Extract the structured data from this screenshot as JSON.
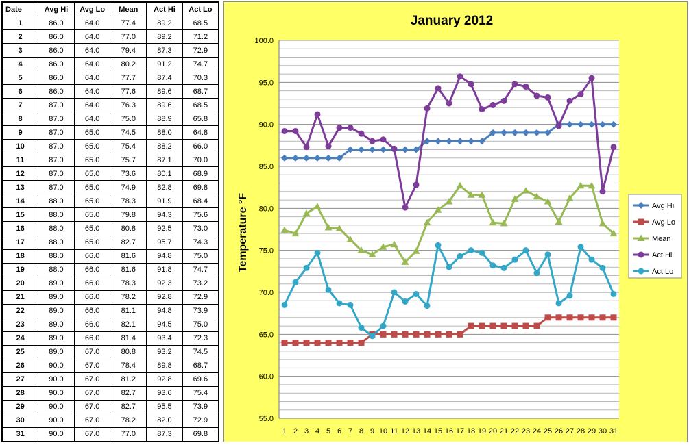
{
  "table": {
    "headers": [
      "Date",
      "Avg Hi",
      "Avg Lo",
      "Mean",
      "Act Hi",
      "Act Lo"
    ],
    "rows": [
      [
        "1",
        "86.0",
        "64.0",
        "77.4",
        "89.2",
        "68.5"
      ],
      [
        "2",
        "86.0",
        "64.0",
        "77.0",
        "89.2",
        "71.2"
      ],
      [
        "3",
        "86.0",
        "64.0",
        "79.4",
        "87.3",
        "72.9"
      ],
      [
        "4",
        "86.0",
        "64.0",
        "80.2",
        "91.2",
        "74.7"
      ],
      [
        "5",
        "86.0",
        "64.0",
        "77.7",
        "87.4",
        "70.3"
      ],
      [
        "6",
        "86.0",
        "64.0",
        "77.6",
        "89.6",
        "68.7"
      ],
      [
        "7",
        "87.0",
        "64.0",
        "76.3",
        "89.6",
        "68.5"
      ],
      [
        "8",
        "87.0",
        "64.0",
        "75.0",
        "88.9",
        "65.8"
      ],
      [
        "9",
        "87.0",
        "65.0",
        "74.5",
        "88.0",
        "64.8"
      ],
      [
        "10",
        "87.0",
        "65.0",
        "75.4",
        "88.2",
        "66.0"
      ],
      [
        "11",
        "87.0",
        "65.0",
        "75.7",
        "87.1",
        "70.0"
      ],
      [
        "12",
        "87.0",
        "65.0",
        "73.6",
        "80.1",
        "68.9"
      ],
      [
        "13",
        "87.0",
        "65.0",
        "74.9",
        "82.8",
        "69.8"
      ],
      [
        "14",
        "88.0",
        "65.0",
        "78.3",
        "91.9",
        "68.4"
      ],
      [
        "15",
        "88.0",
        "65.0",
        "79.8",
        "94.3",
        "75.6"
      ],
      [
        "16",
        "88.0",
        "65.0",
        "80.8",
        "92.5",
        "73.0"
      ],
      [
        "17",
        "88.0",
        "65.0",
        "82.7",
        "95.7",
        "74.3"
      ],
      [
        "18",
        "88.0",
        "66.0",
        "81.6",
        "94.8",
        "75.0"
      ],
      [
        "19",
        "88.0",
        "66.0",
        "81.6",
        "91.8",
        "74.7"
      ],
      [
        "20",
        "89.0",
        "66.0",
        "78.3",
        "92.3",
        "73.2"
      ],
      [
        "21",
        "89.0",
        "66.0",
        "78.2",
        "92.8",
        "72.9"
      ],
      [
        "22",
        "89.0",
        "66.0",
        "81.1",
        "94.8",
        "73.9"
      ],
      [
        "23",
        "89.0",
        "66.0",
        "82.1",
        "94.5",
        "75.0"
      ],
      [
        "24",
        "89.0",
        "66.0",
        "81.4",
        "93.4",
        "72.3"
      ],
      [
        "25",
        "89.0",
        "67.0",
        "80.8",
        "93.2",
        "74.5"
      ],
      [
        "26",
        "90.0",
        "67.0",
        "78.4",
        "89.8",
        "68.7"
      ],
      [
        "27",
        "90.0",
        "67.0",
        "81.2",
        "92.8",
        "69.6"
      ],
      [
        "28",
        "90.0",
        "67.0",
        "82.7",
        "93.6",
        "75.4"
      ],
      [
        "29",
        "90.0",
        "67.0",
        "82.7",
        "95.5",
        "73.9"
      ],
      [
        "30",
        "90.0",
        "67.0",
        "78.2",
        "82.0",
        "72.9"
      ],
      [
        "31",
        "90.0",
        "67.0",
        "77.0",
        "87.3",
        "69.8"
      ]
    ]
  },
  "chart_data": {
    "type": "line",
    "title": "January 2012",
    "xlabel": "",
    "ylabel": "Temperature °F",
    "ylim": [
      55,
      100
    ],
    "yticks": [
      "55.0",
      "60.0",
      "65.0",
      "70.0",
      "75.0",
      "80.0",
      "85.0",
      "90.0",
      "95.0",
      "100.0"
    ],
    "x": [
      1,
      2,
      3,
      4,
      5,
      6,
      7,
      8,
      9,
      10,
      11,
      12,
      13,
      14,
      15,
      16,
      17,
      18,
      19,
      20,
      21,
      22,
      23,
      24,
      25,
      26,
      27,
      28,
      29,
      30,
      31
    ],
    "grid": true,
    "legend_position": "right",
    "background": "#ffff66",
    "series": [
      {
        "name": "Avg Hi",
        "color": "#4a7ebb",
        "marker": "diamond",
        "values": [
          86,
          86,
          86,
          86,
          86,
          86,
          87,
          87,
          87,
          87,
          87,
          87,
          87,
          88,
          88,
          88,
          88,
          88,
          88,
          89,
          89,
          89,
          89,
          89,
          89,
          90,
          90,
          90,
          90,
          90,
          90
        ]
      },
      {
        "name": "Avg Lo",
        "color": "#be4b48",
        "marker": "square",
        "values": [
          64,
          64,
          64,
          64,
          64,
          64,
          64,
          64,
          65,
          65,
          65,
          65,
          65,
          65,
          65,
          65,
          65,
          66,
          66,
          66,
          66,
          66,
          66,
          66,
          67,
          67,
          67,
          67,
          67,
          67,
          67
        ]
      },
      {
        "name": "Mean",
        "color": "#98b954",
        "marker": "triangle",
        "values": [
          77.4,
          77.0,
          79.4,
          80.2,
          77.7,
          77.6,
          76.3,
          75.0,
          74.5,
          75.4,
          75.7,
          73.6,
          74.9,
          78.3,
          79.8,
          80.8,
          82.7,
          81.6,
          81.6,
          78.3,
          78.2,
          81.1,
          82.1,
          81.4,
          80.8,
          78.4,
          81.2,
          82.7,
          82.7,
          78.2,
          77.0
        ]
      },
      {
        "name": "Act Hi",
        "color": "#7d3c9a",
        "marker": "circle",
        "values": [
          89.2,
          89.2,
          87.3,
          91.2,
          87.4,
          89.6,
          89.6,
          88.9,
          88.0,
          88.2,
          87.1,
          80.1,
          82.8,
          91.9,
          94.3,
          92.5,
          95.7,
          94.8,
          91.8,
          92.3,
          92.8,
          94.8,
          94.5,
          93.4,
          93.2,
          89.8,
          92.8,
          93.6,
          95.5,
          82.0,
          87.3
        ]
      },
      {
        "name": "Act Lo",
        "color": "#33a7c8",
        "marker": "circle",
        "values": [
          68.5,
          71.2,
          72.9,
          74.7,
          70.3,
          68.7,
          68.5,
          65.8,
          64.8,
          66.0,
          70.0,
          68.9,
          69.8,
          68.4,
          75.6,
          73.0,
          74.3,
          75.0,
          74.7,
          73.2,
          72.9,
          73.9,
          75.0,
          72.3,
          74.5,
          68.7,
          69.6,
          75.4,
          73.9,
          72.9,
          69.8
        ]
      }
    ]
  }
}
